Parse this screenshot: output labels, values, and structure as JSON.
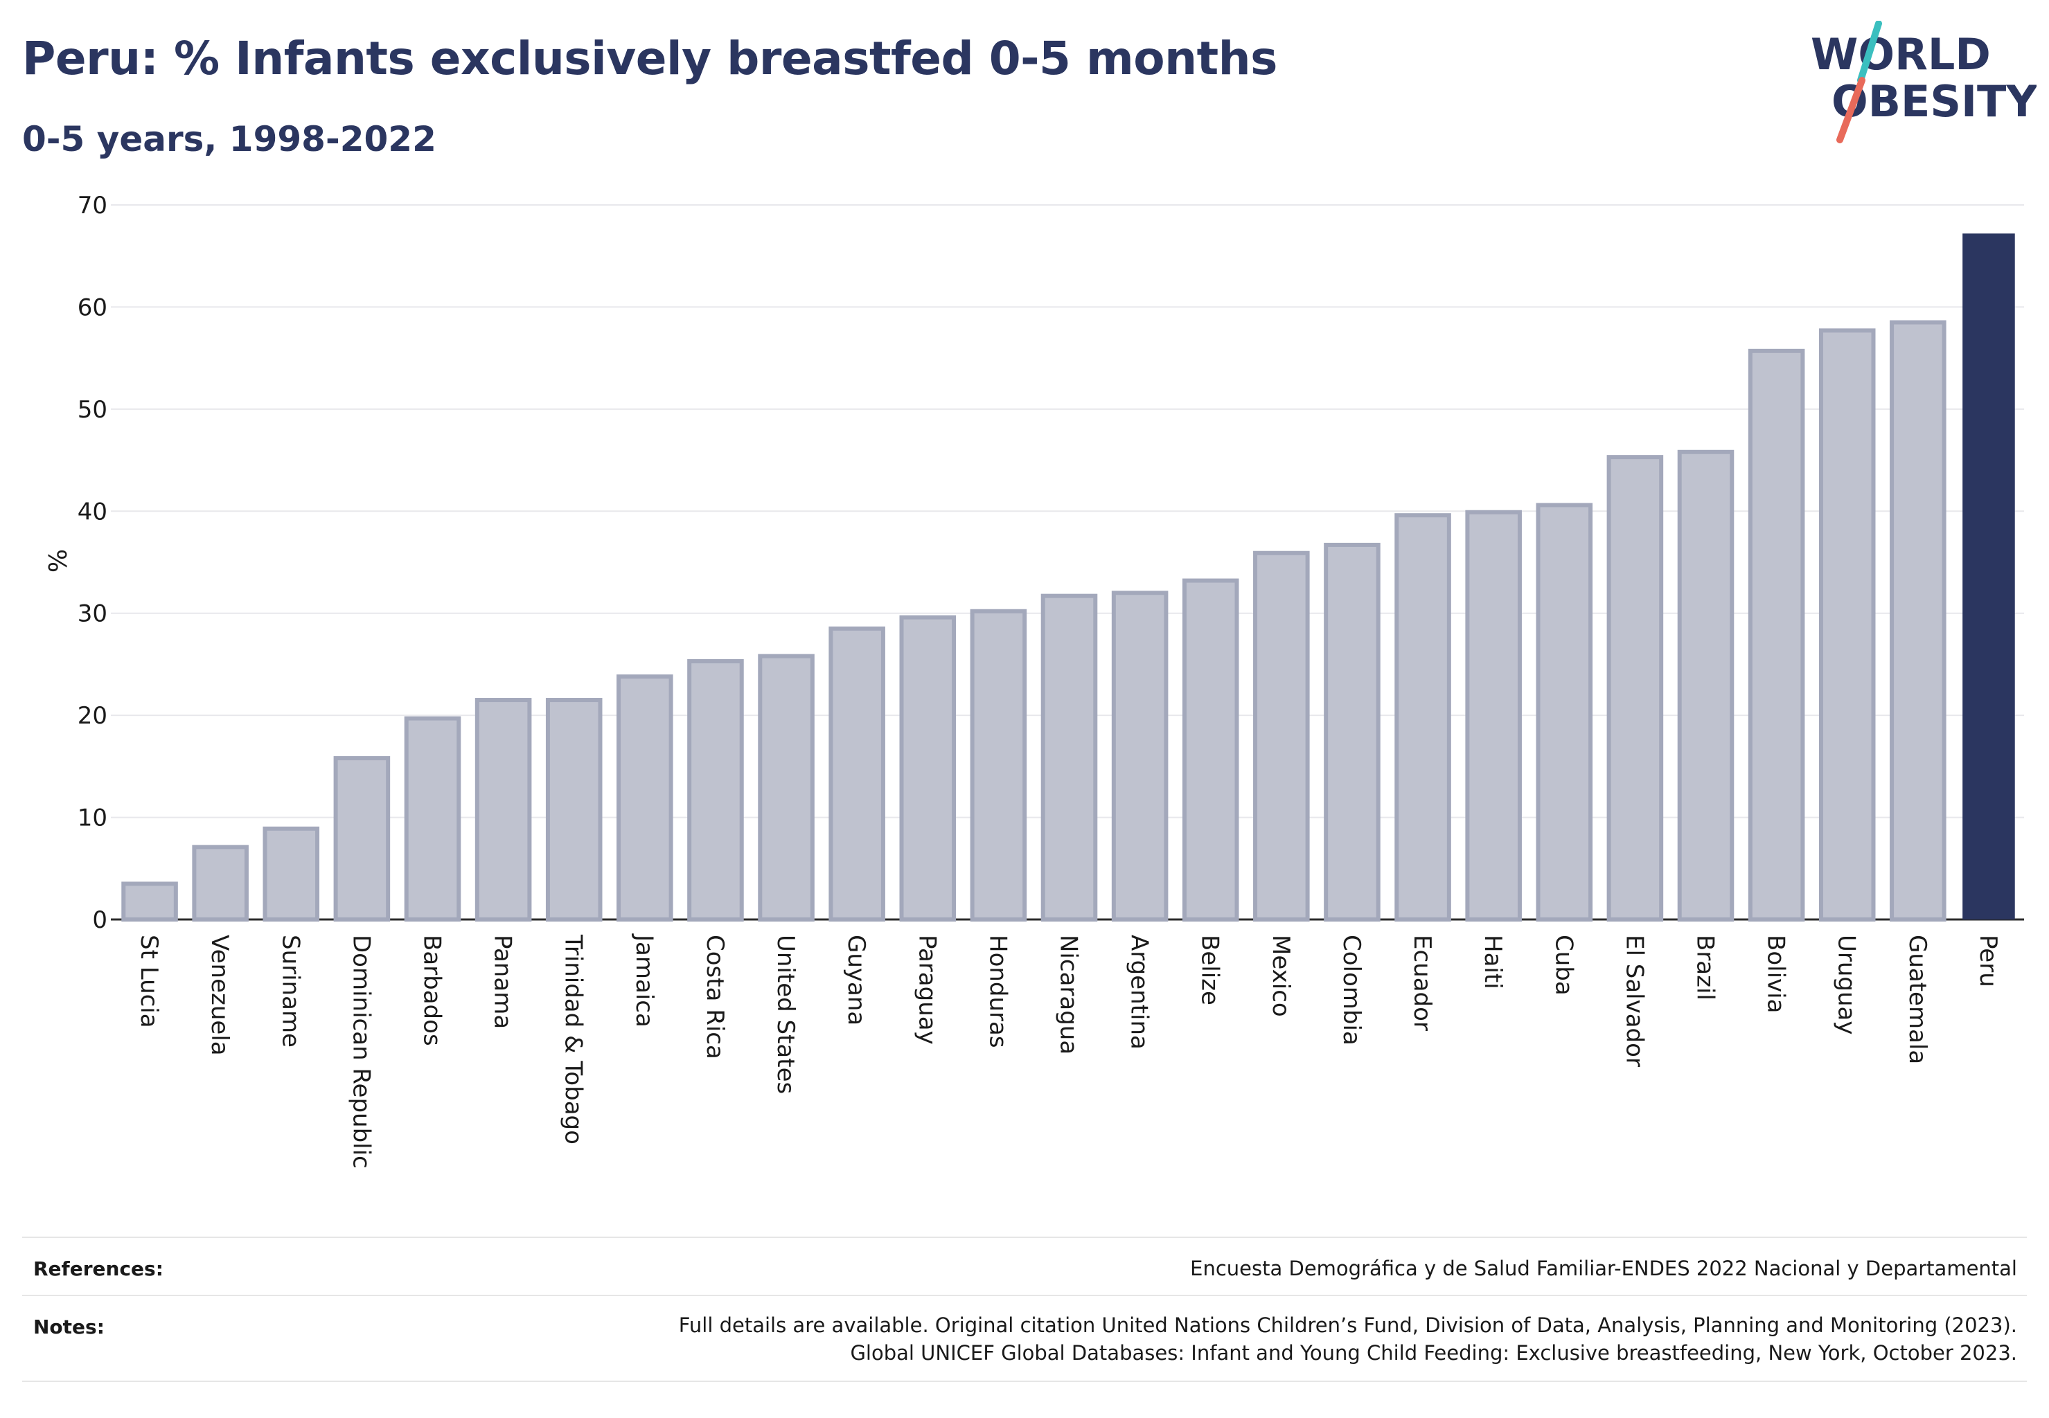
{
  "header": {
    "title": "Peru: % Infants exclusively breastfed 0-5 months",
    "subtitle": "0-5 years, 1998-2022"
  },
  "logo": {
    "line1": "WORLD",
    "line2": "OBESITY",
    "text_color": "#2b3660",
    "slash_teal": "#3bbfbf",
    "slash_coral": "#e86a5a"
  },
  "chart_data": {
    "type": "bar",
    "ylabel": "%",
    "xlabel": "",
    "ylim": [
      0,
      70
    ],
    "yticks": [
      0,
      10,
      20,
      30,
      40,
      50,
      60,
      70
    ],
    "grid": true,
    "highlight_category": "Peru",
    "colors": {
      "bar": "#bfc2cf",
      "bar_edge": "#a3a8bb",
      "highlight": "#2b3660",
      "grid": "#e8e8ec"
    },
    "categories": [
      "St Lucia",
      "Venezuela",
      "Suriname",
      "Dominican Republic",
      "Barbados",
      "Panama",
      "Trinidad & Tobago",
      "Jamaica",
      "Costa Rica",
      "United States",
      "Guyana",
      "Paraguay",
      "Honduras",
      "Nicaragua",
      "Argentina",
      "Belize",
      "Mexico",
      "Colombia",
      "Ecuador",
      "Haiti",
      "Cuba",
      "El Salvador",
      "Brazil",
      "Bolivia",
      "Uruguay",
      "Guatemala",
      "Peru"
    ],
    "values": [
      3.5,
      7.1,
      8.9,
      15.8,
      19.7,
      21.5,
      21.5,
      23.8,
      25.3,
      25.8,
      28.5,
      29.6,
      30.2,
      31.7,
      32.0,
      33.2,
      35.9,
      36.7,
      39.6,
      39.9,
      40.6,
      45.3,
      45.8,
      55.7,
      57.7,
      58.5,
      67.2
    ]
  },
  "footer": {
    "references_label": "References:",
    "references_text": "Encuesta Demográfica y de Salud Familiar-ENDES 2022 Nacional y Departamental",
    "notes_label": "Notes:",
    "notes_line1": "Full details are available. Original citation United Nations Children’s Fund, Division of Data, Analysis, Planning and Monitoring (2023).",
    "notes_line2": "Global UNICEF Global Databases: Infant and Young Child Feeding: Exclusive breastfeeding, New York, October 2023."
  }
}
